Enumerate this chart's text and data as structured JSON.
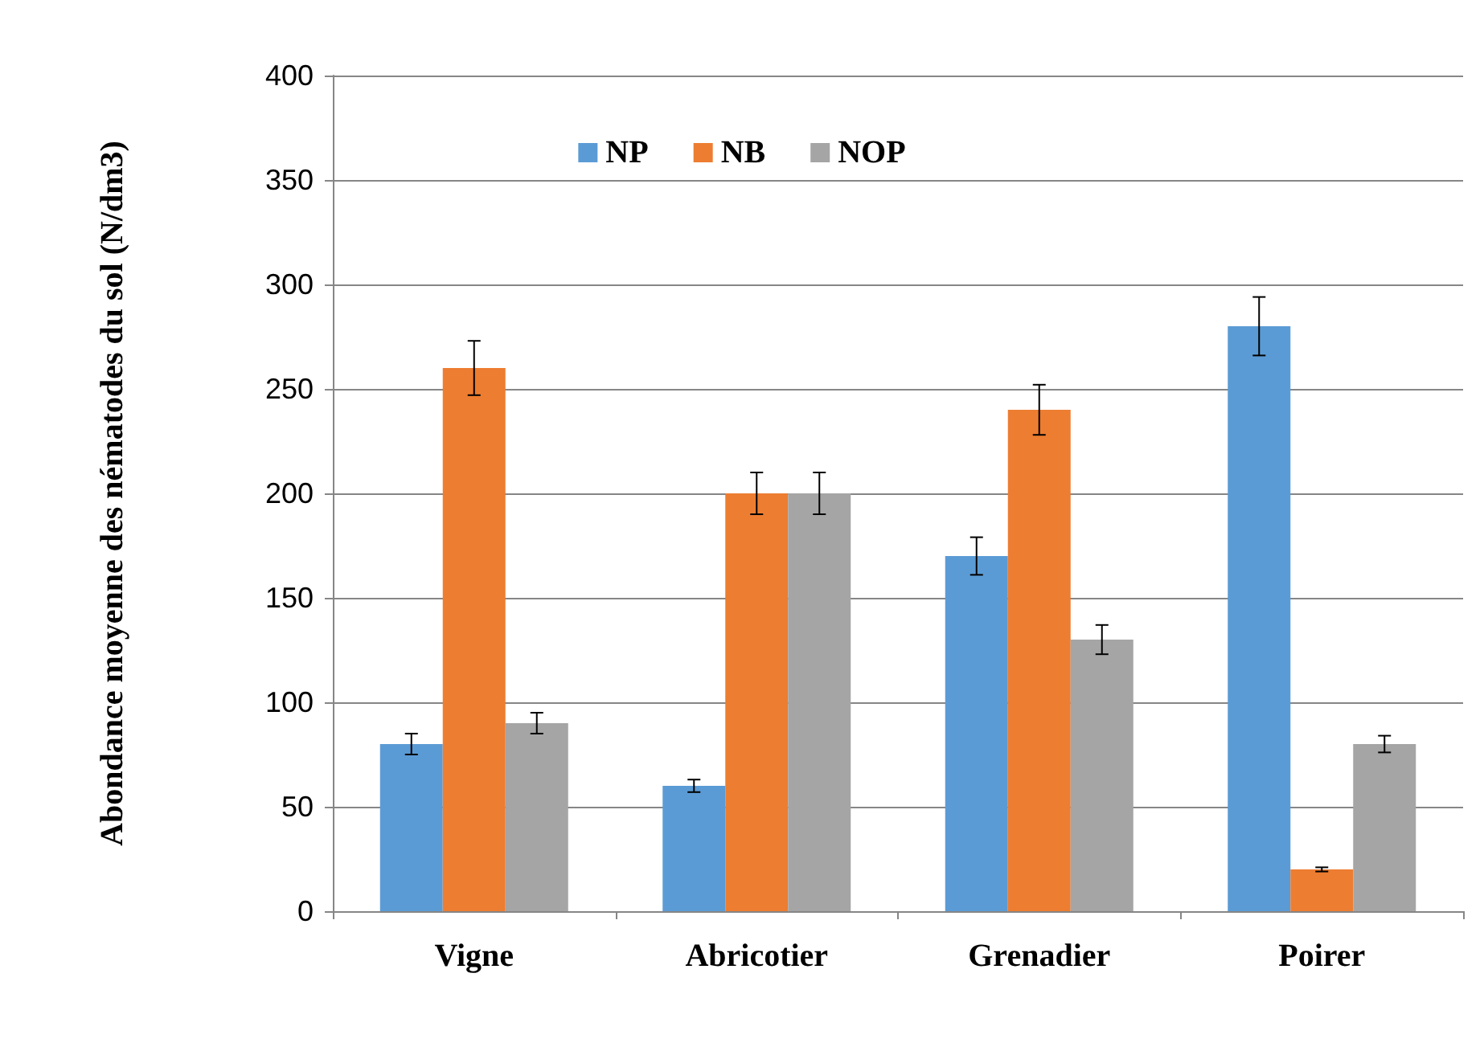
{
  "chart_data": {
    "type": "bar",
    "ylabel": "Abondance moyenne des nématodes du sol (N/dm3)",
    "categories": [
      "Vigne",
      "Abricotier",
      "Grenadier",
      "Poirer"
    ],
    "series": [
      {
        "name": "NP",
        "color": "#5b9bd5",
        "values": [
          80,
          60,
          170,
          280
        ],
        "errors": [
          5,
          3,
          9,
          14
        ]
      },
      {
        "name": "NB",
        "color": "#ed7d31",
        "values": [
          260,
          200,
          240,
          20
        ],
        "errors": [
          13,
          10,
          12,
          1
        ]
      },
      {
        "name": "NOP",
        "color": "#a5a5a5",
        "values": [
          90,
          200,
          130,
          80
        ],
        "errors": [
          5,
          10,
          7,
          4
        ]
      }
    ],
    "ylim": [
      0,
      400
    ],
    "yticks": [
      0,
      50,
      100,
      150,
      200,
      250,
      300,
      350,
      400
    ],
    "grid": "y",
    "legend": "top"
  }
}
